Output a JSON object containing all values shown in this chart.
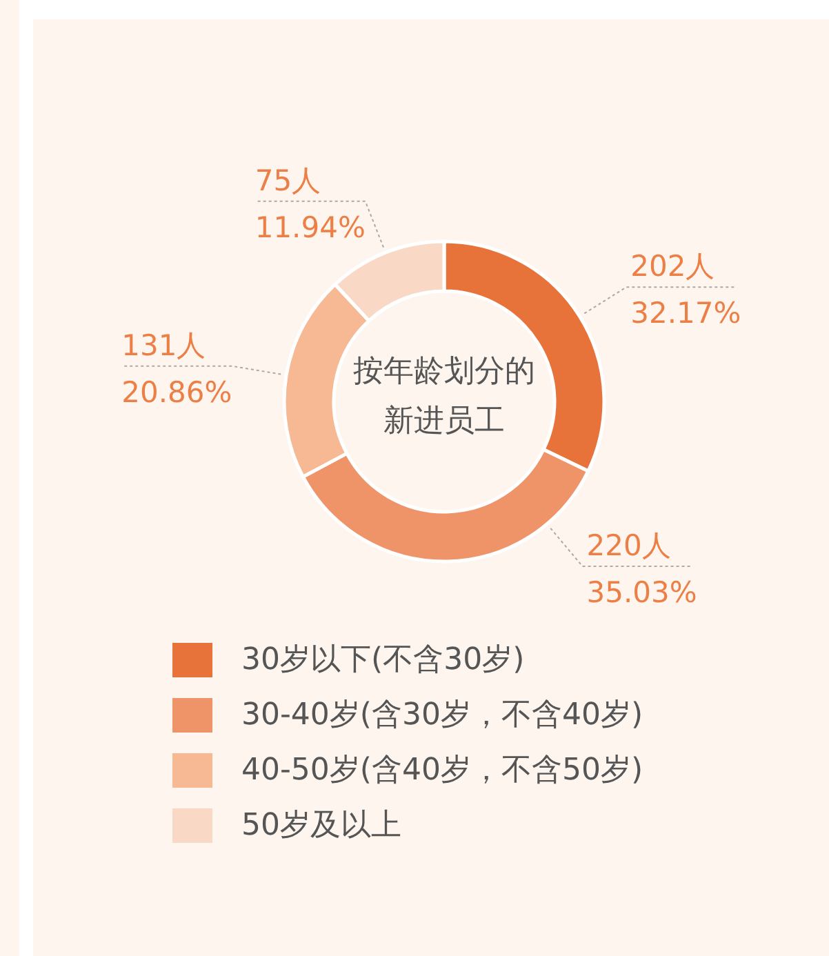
{
  "chart_data": {
    "type": "donut",
    "title": "按年龄划分的新进员工",
    "categories": [
      "30岁以下(不含30岁)",
      "30-40岁(含30岁，不含40岁)",
      "40-50岁(含40岁，不含50岁)",
      "50岁及以上"
    ],
    "values": [
      202,
      220,
      131,
      75
    ],
    "colors": [
      "#e8733a",
      "#ef9469",
      "#f6b994",
      "#f9d9c5"
    ],
    "value_labels": [
      "202人",
      "220人",
      "131人",
      "75人"
    ],
    "annotations": [
      {
        "text": "32.17%",
        "x": "30岁以下(不含30岁)"
      },
      {
        "text": "35.03%",
        "x": "30-40岁(含30岁，不含40岁)"
      },
      {
        "text": "20.86%",
        "x": "40-50岁(含40岁，不含50岁)"
      },
      {
        "text": "11.94%",
        "x": "50岁及以上"
      }
    ],
    "legend": "bottom"
  }
}
